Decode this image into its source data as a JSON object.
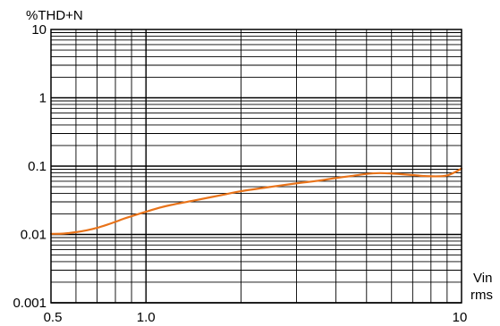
{
  "chart_data": {
    "type": "line",
    "title": "",
    "ylabel": "%THD+N",
    "xlabel_line1": "Vin",
    "xlabel_line2": "rms",
    "xscale": "log",
    "yscale": "log",
    "xlim": [
      0.5,
      10
    ],
    "ylim": [
      0.001,
      10
    ],
    "grid": true,
    "x_tick_labels": [
      {
        "value": 0.5,
        "label": "0.5"
      },
      {
        "value": 1.0,
        "label": "1.0"
      },
      {
        "value": 10,
        "label": "10"
      }
    ],
    "y_tick_labels": [
      {
        "value": 10,
        "label": "10"
      },
      {
        "value": 1,
        "label": "1"
      },
      {
        "value": 0.1,
        "label": "0.1"
      },
      {
        "value": 0.01,
        "label": "0.01"
      },
      {
        "value": 0.001,
        "label": "0.001"
      }
    ],
    "series": [
      {
        "color": "#e8731a",
        "points": [
          [
            0.5,
            0.0102
          ],
          [
            0.55,
            0.0103
          ],
          [
            0.6,
            0.0108
          ],
          [
            0.65,
            0.0115
          ],
          [
            0.7,
            0.0125
          ],
          [
            0.75,
            0.0138
          ],
          [
            0.8,
            0.0153
          ],
          [
            0.85,
            0.017
          ],
          [
            0.9,
            0.0185
          ],
          [
            1.0,
            0.0215
          ],
          [
            1.1,
            0.0245
          ],
          [
            1.2,
            0.027
          ],
          [
            1.4,
            0.031
          ],
          [
            1.6,
            0.035
          ],
          [
            1.8,
            0.039
          ],
          [
            2.0,
            0.043
          ],
          [
            2.5,
            0.05
          ],
          [
            3.0,
            0.056
          ],
          [
            3.5,
            0.061
          ],
          [
            4.0,
            0.067
          ],
          [
            4.5,
            0.072
          ],
          [
            5.0,
            0.077
          ],
          [
            5.5,
            0.079
          ],
          [
            6.0,
            0.078
          ],
          [
            6.5,
            0.076
          ],
          [
            7.0,
            0.074
          ],
          [
            7.5,
            0.072
          ],
          [
            8.0,
            0.071
          ],
          [
            8.5,
            0.071
          ],
          [
            9.0,
            0.073
          ],
          [
            9.5,
            0.081
          ],
          [
            10.0,
            0.092
          ]
        ]
      }
    ]
  }
}
